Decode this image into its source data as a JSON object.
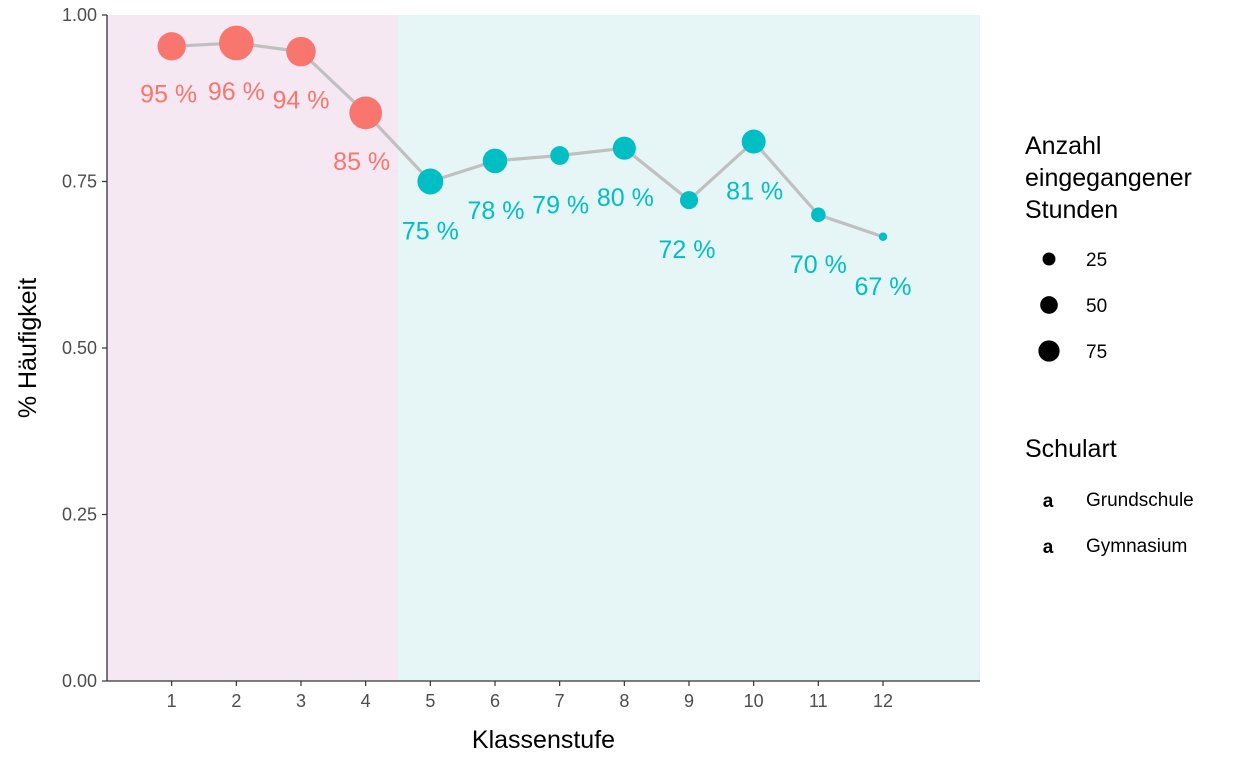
{
  "chart_data": {
    "type": "line",
    "title": "",
    "xlabel": "Klassenstufe",
    "ylabel": "% Häufigkeit",
    "x_ticks": [
      "1",
      "2",
      "3",
      "4",
      "5",
      "6",
      "7",
      "8",
      "9",
      "10",
      "11",
      "12"
    ],
    "y_ticks": [
      "0.00",
      "0.25",
      "0.50",
      "0.75",
      "1.00"
    ],
    "xlim": [
      0,
      13.5
    ],
    "ylim": [
      0,
      1.0
    ],
    "grid": false,
    "legend_position": "right",
    "colors": {
      "Grundschule": "#f8766d",
      "Gymnasium": "#00bfc4",
      "Grundschule_band": "#f6e8f3",
      "Gymnasium_band": "#e6f5f5",
      "line": "#c0c0c0"
    },
    "bands": [
      {
        "group": "Grundschule",
        "from": 0,
        "to": 4.5
      },
      {
        "group": "Gymnasium",
        "from": 4.5,
        "to": 13.5
      }
    ],
    "points": [
      {
        "x": 1,
        "y": 0.953,
        "size": 55,
        "group": "Grundschule",
        "label": "95 %"
      },
      {
        "x": 2,
        "y": 0.958,
        "size": 85,
        "group": "Grundschule",
        "label": "96 %"
      },
      {
        "x": 3,
        "y": 0.945,
        "size": 60,
        "group": "Grundschule",
        "label": "94 %"
      },
      {
        "x": 4,
        "y": 0.853,
        "size": 75,
        "group": "Grundschule",
        "label": "85 %"
      },
      {
        "x": 5,
        "y": 0.75,
        "size": 45,
        "group": "Gymnasium",
        "label": "75 %"
      },
      {
        "x": 6,
        "y": 0.781,
        "size": 40,
        "group": "Gymnasium",
        "label": "78 %"
      },
      {
        "x": 7,
        "y": 0.789,
        "size": 22,
        "group": "Gymnasium",
        "label": "79 %"
      },
      {
        "x": 8,
        "y": 0.8,
        "size": 35,
        "group": "Gymnasium",
        "label": "80 %"
      },
      {
        "x": 9,
        "y": 0.722,
        "size": 20,
        "group": "Gymnasium",
        "label": "72 %"
      },
      {
        "x": 10,
        "y": 0.81,
        "size": 38,
        "group": "Gymnasium",
        "label": "81 %"
      },
      {
        "x": 11,
        "y": 0.7,
        "size": 12,
        "group": "Gymnasium",
        "label": "70 %"
      },
      {
        "x": 12,
        "y": 0.667,
        "size": 3,
        "group": "Gymnasium",
        "label": "67 %"
      }
    ],
    "legend": {
      "size_title": [
        "Anzahl",
        "eingegangener",
        "Stunden"
      ],
      "size_entries": [
        {
          "label": "25",
          "size": 25
        },
        {
          "label": "50",
          "size": 50
        },
        {
          "label": "75",
          "size": 75
        }
      ],
      "color_title": "Schulart",
      "color_entries": [
        {
          "label": "Grundschule",
          "group": "Grundschule",
          "glyph": "a"
        },
        {
          "label": "Gymnasium",
          "group": "Gymnasium",
          "glyph": "a"
        }
      ]
    }
  }
}
